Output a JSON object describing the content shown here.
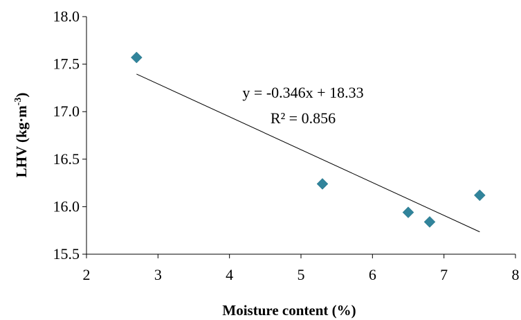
{
  "chart_data": {
    "type": "scatter",
    "title": "",
    "xlabel": "Moisture content (%)",
    "ylabel_main": "LHV (kg·m",
    "ylabel_sup": "-3",
    "ylabel_tail": ")",
    "xlim": [
      2,
      8
    ],
    "ylim": [
      15.5,
      18.0
    ],
    "x_ticks": [
      "2",
      "3",
      "4",
      "5",
      "6",
      "7",
      "8"
    ],
    "y_ticks": [
      "15.5",
      "16.0",
      "16.5",
      "17.0",
      "17.5",
      "18.0"
    ],
    "grid": false,
    "marker": "diamond",
    "marker_color": "#31849b",
    "points": [
      {
        "x": 2.7,
        "y": 17.57
      },
      {
        "x": 5.3,
        "y": 16.24
      },
      {
        "x": 6.5,
        "y": 15.94
      },
      {
        "x": 6.8,
        "y": 15.84
      },
      {
        "x": 7.5,
        "y": 16.12
      }
    ],
    "trendline": {
      "type": "linear",
      "slope": -0.346,
      "intercept": 18.33,
      "x_range": [
        2.7,
        7.5
      ],
      "equation_label": "y = -0.346x + 18.33",
      "r2_label": "R² = 0.856"
    }
  }
}
